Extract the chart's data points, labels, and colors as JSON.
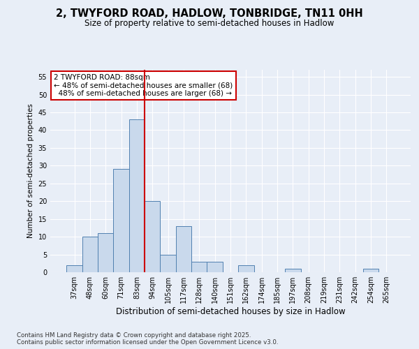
{
  "title_line1": "2, TWYFORD ROAD, HADLOW, TONBRIDGE, TN11 0HH",
  "title_line2": "Size of property relative to semi-detached houses in Hadlow",
  "xlabel": "Distribution of semi-detached houses by size in Hadlow",
  "ylabel": "Number of semi-detached properties",
  "bar_labels": [
    "37sqm",
    "48sqm",
    "60sqm",
    "71sqm",
    "83sqm",
    "94sqm",
    "105sqm",
    "117sqm",
    "128sqm",
    "140sqm",
    "151sqm",
    "162sqm",
    "174sqm",
    "185sqm",
    "197sqm",
    "208sqm",
    "219sqm",
    "231sqm",
    "242sqm",
    "254sqm",
    "265sqm"
  ],
  "bar_values": [
    2,
    10,
    11,
    29,
    43,
    20,
    5,
    13,
    3,
    3,
    0,
    2,
    0,
    0,
    1,
    0,
    0,
    0,
    0,
    1,
    0
  ],
  "bar_color": "#c9d9ec",
  "bar_edge_color": "#5080b0",
  "ylim": [
    0,
    57
  ],
  "yticks": [
    0,
    5,
    10,
    15,
    20,
    25,
    30,
    35,
    40,
    45,
    50,
    55
  ],
  "property_label": "2 TWYFORD ROAD: 88sqm",
  "pct_smaller": 48,
  "pct_larger": 48,
  "count_smaller": 68,
  "count_larger": 68,
  "vline_position": 4.5,
  "annotation_box_color": "#cc0000",
  "background_color": "#e8eef7",
  "grid_color": "#ffffff",
  "footer_line1": "Contains HM Land Registry data © Crown copyright and database right 2025.",
  "footer_line2": "Contains public sector information licensed under the Open Government Licence v3.0."
}
